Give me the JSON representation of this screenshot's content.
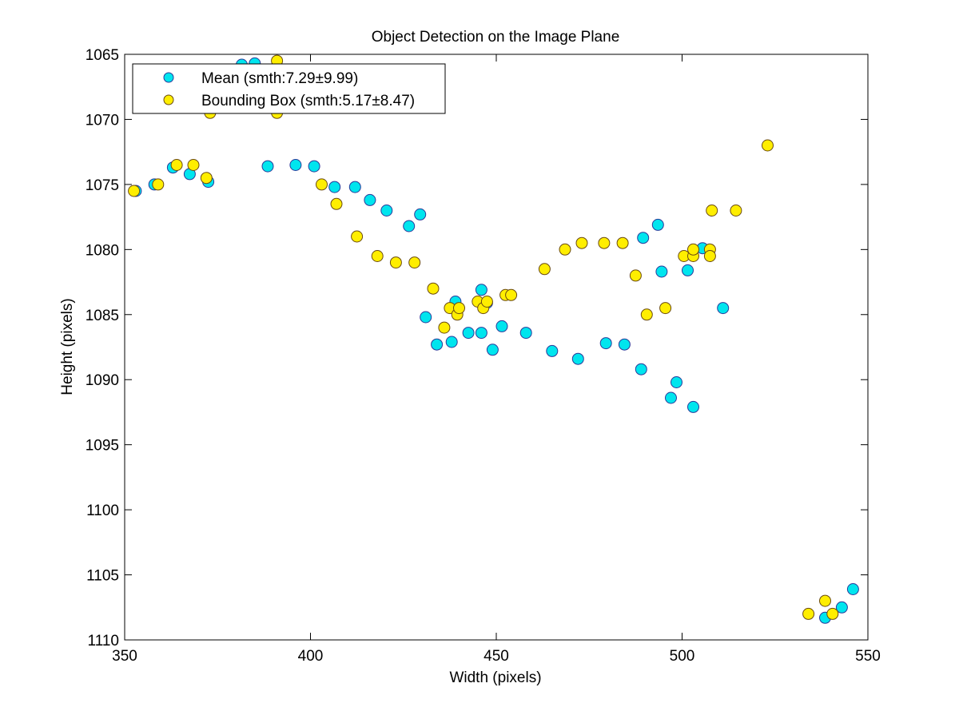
{
  "chart_data": {
    "type": "scatter",
    "title": "Object Detection on the Image Plane",
    "xlabel": "Width (pixels)",
    "ylabel": "Height (pixels)",
    "xlim": [
      350,
      550
    ],
    "ylim": [
      1065,
      1110
    ],
    "y_reversed": true,
    "grid": false,
    "legend_position": "top-left",
    "xticks": [
      350,
      400,
      450,
      500,
      550
    ],
    "yticks": [
      1065,
      1070,
      1075,
      1080,
      1085,
      1090,
      1095,
      1100,
      1105,
      1110
    ],
    "series": [
      {
        "name": "Mean (smth:7.29±9.99)",
        "color": "#00e5ee",
        "points": [
          [
            353,
            1075.5
          ],
          [
            358,
            1075.0
          ],
          [
            363,
            1073.7
          ],
          [
            367.5,
            1074.2
          ],
          [
            372.5,
            1074.8
          ],
          [
            381.5,
            1065.8
          ],
          [
            385,
            1065.7
          ],
          [
            388.5,
            1073.6
          ],
          [
            396,
            1073.5
          ],
          [
            401,
            1073.6
          ],
          [
            406.5,
            1075.2
          ],
          [
            412,
            1075.2
          ],
          [
            416,
            1076.2
          ],
          [
            420.5,
            1077.0
          ],
          [
            426.5,
            1078.2
          ],
          [
            429.5,
            1077.3
          ],
          [
            431,
            1085.2
          ],
          [
            434,
            1087.3
          ],
          [
            438,
            1087.1
          ],
          [
            439,
            1084.0
          ],
          [
            442.5,
            1086.4
          ],
          [
            446,
            1086.4
          ],
          [
            446,
            1083.1
          ],
          [
            447.5,
            1084.1
          ],
          [
            449,
            1087.7
          ],
          [
            451.5,
            1085.9
          ],
          [
            458,
            1086.4
          ],
          [
            465,
            1087.8
          ],
          [
            472,
            1088.4
          ],
          [
            479.5,
            1087.2
          ],
          [
            484.5,
            1087.3
          ],
          [
            489,
            1089.2
          ],
          [
            489.5,
            1079.1
          ],
          [
            493.5,
            1078.1
          ],
          [
            494.5,
            1081.7
          ],
          [
            497,
            1091.4
          ],
          [
            498.5,
            1090.2
          ],
          [
            501.5,
            1081.6
          ],
          [
            503,
            1092.1
          ],
          [
            505.5,
            1079.9
          ],
          [
            511,
            1084.5
          ],
          [
            538.5,
            1108.3
          ],
          [
            543,
            1107.5
          ],
          [
            546,
            1106.1
          ]
        ]
      },
      {
        "name": "Bounding Box (smth:5.17±8.47)",
        "color": "#ffee00",
        "points": [
          [
            352.5,
            1075.5
          ],
          [
            359,
            1075.0
          ],
          [
            364,
            1073.5
          ],
          [
            368.5,
            1073.5
          ],
          [
            372,
            1074.5
          ],
          [
            373,
            1069.5
          ],
          [
            391,
            1065.5
          ],
          [
            391,
            1069.5
          ],
          [
            403,
            1075.0
          ],
          [
            407,
            1076.5
          ],
          [
            412.5,
            1079.0
          ],
          [
            418,
            1080.5
          ],
          [
            423,
            1081.0
          ],
          [
            428,
            1081.0
          ],
          [
            433,
            1083.0
          ],
          [
            436,
            1086.0
          ],
          [
            437.5,
            1084.5
          ],
          [
            439.5,
            1085.0
          ],
          [
            440,
            1084.5
          ],
          [
            445,
            1084.0
          ],
          [
            446.5,
            1084.5
          ],
          [
            447.5,
            1084.0
          ],
          [
            452.5,
            1083.5
          ],
          [
            454,
            1083.5
          ],
          [
            463,
            1081.5
          ],
          [
            468.5,
            1080.0
          ],
          [
            473,
            1079.5
          ],
          [
            479,
            1079.5
          ],
          [
            484,
            1079.5
          ],
          [
            487.5,
            1082.0
          ],
          [
            490.5,
            1085.0
          ],
          [
            495.5,
            1084.5
          ],
          [
            500.5,
            1080.5
          ],
          [
            503,
            1080.5
          ],
          [
            503,
            1080.0
          ],
          [
            507.5,
            1080.0
          ],
          [
            507.5,
            1080.5
          ],
          [
            508,
            1077.0
          ],
          [
            514.5,
            1077.0
          ],
          [
            523,
            1072.0
          ],
          [
            534,
            1108.0
          ],
          [
            538.5,
            1107.0
          ],
          [
            540.5,
            1108.0
          ]
        ]
      }
    ]
  }
}
